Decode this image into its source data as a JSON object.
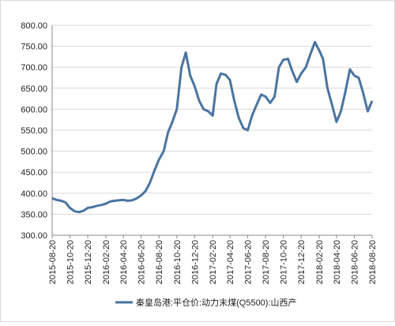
{
  "chart_data": {
    "type": "line",
    "x": [
      "2015-08-20",
      "2015-09-05",
      "2015-09-20",
      "2015-10-05",
      "2015-10-20",
      "2015-11-05",
      "2015-11-20",
      "2015-12-05",
      "2015-12-20",
      "2016-01-05",
      "2016-01-20",
      "2016-02-05",
      "2016-02-20",
      "2016-03-05",
      "2016-03-20",
      "2016-04-05",
      "2016-04-20",
      "2016-05-05",
      "2016-05-20",
      "2016-06-05",
      "2016-06-20",
      "2016-07-05",
      "2016-07-20",
      "2016-08-05",
      "2016-08-20",
      "2016-09-05",
      "2016-09-20",
      "2016-10-05",
      "2016-10-20",
      "2016-11-05",
      "2016-11-20",
      "2016-12-05",
      "2016-12-20",
      "2017-01-05",
      "2017-01-20",
      "2017-02-05",
      "2017-02-20",
      "2017-03-05",
      "2017-03-20",
      "2017-04-05",
      "2017-04-20",
      "2017-05-05",
      "2017-05-20",
      "2017-06-05",
      "2017-06-20",
      "2017-07-05",
      "2017-07-20",
      "2017-08-05",
      "2017-08-20",
      "2017-09-05",
      "2017-09-20",
      "2017-10-05",
      "2017-10-20",
      "2017-11-05",
      "2017-11-20",
      "2017-12-05",
      "2017-12-20",
      "2018-01-05",
      "2018-01-20",
      "2018-02-05",
      "2018-02-20",
      "2018-03-05",
      "2018-03-20",
      "2018-04-05",
      "2018-04-20",
      "2018-05-05",
      "2018-05-20",
      "2018-06-05",
      "2018-06-20",
      "2018-07-05",
      "2018-07-20",
      "2018-08-05",
      "2018-08-20"
    ],
    "series": [
      {
        "name": "秦皇岛港:平仓价:动力末煤(Q5500):山西产",
        "color": "#4a74a0",
        "values": [
          388,
          384,
          382,
          378,
          365,
          357,
          355,
          358,
          365,
          367,
          370,
          372,
          375,
          380,
          382,
          383,
          384,
          382,
          383,
          388,
          395,
          405,
          425,
          455,
          480,
          500,
          545,
          570,
          600,
          700,
          735,
          680,
          655,
          620,
          600,
          595,
          585,
          660,
          685,
          682,
          670,
          620,
          580,
          555,
          550,
          585,
          610,
          635,
          630,
          615,
          630,
          700,
          718,
          720,
          690,
          665,
          685,
          700,
          730,
          760,
          740,
          720,
          650,
          610,
          570,
          595,
          640,
          695,
          680,
          675,
          640,
          595,
          620
        ]
      }
    ],
    "xlim": [
      "2015-08-20",
      "2018-08-20"
    ],
    "xticks": [
      "2015-08-20",
      "2015-10-20",
      "2015-12-20",
      "2016-02-20",
      "2016-04-20",
      "2016-06-20",
      "2016-08-20",
      "2016-10-20",
      "2016-12-20",
      "2017-02-20",
      "2017-04-20",
      "2017-06-20",
      "2017-08-20",
      "2017-10-20",
      "2017-12-20",
      "2018-02-20",
      "2018-04-20",
      "2018-06-20",
      "2018-08-20"
    ],
    "ylim": [
      300,
      800
    ],
    "yticks": [
      {
        "value": 300,
        "label": "300.00"
      },
      {
        "value": 350,
        "label": "350.00"
      },
      {
        "value": 400,
        "label": "400.00"
      },
      {
        "value": 450,
        "label": "450.00"
      },
      {
        "value": 500,
        "label": "500.00"
      },
      {
        "value": 550,
        "label": "550.00"
      },
      {
        "value": 600,
        "label": "600.00"
      },
      {
        "value": 650,
        "label": "650.00"
      },
      {
        "value": 700,
        "label": "700.00"
      },
      {
        "value": 750,
        "label": "750.00"
      },
      {
        "value": 800,
        "label": "800.00"
      }
    ],
    "grid": true
  }
}
